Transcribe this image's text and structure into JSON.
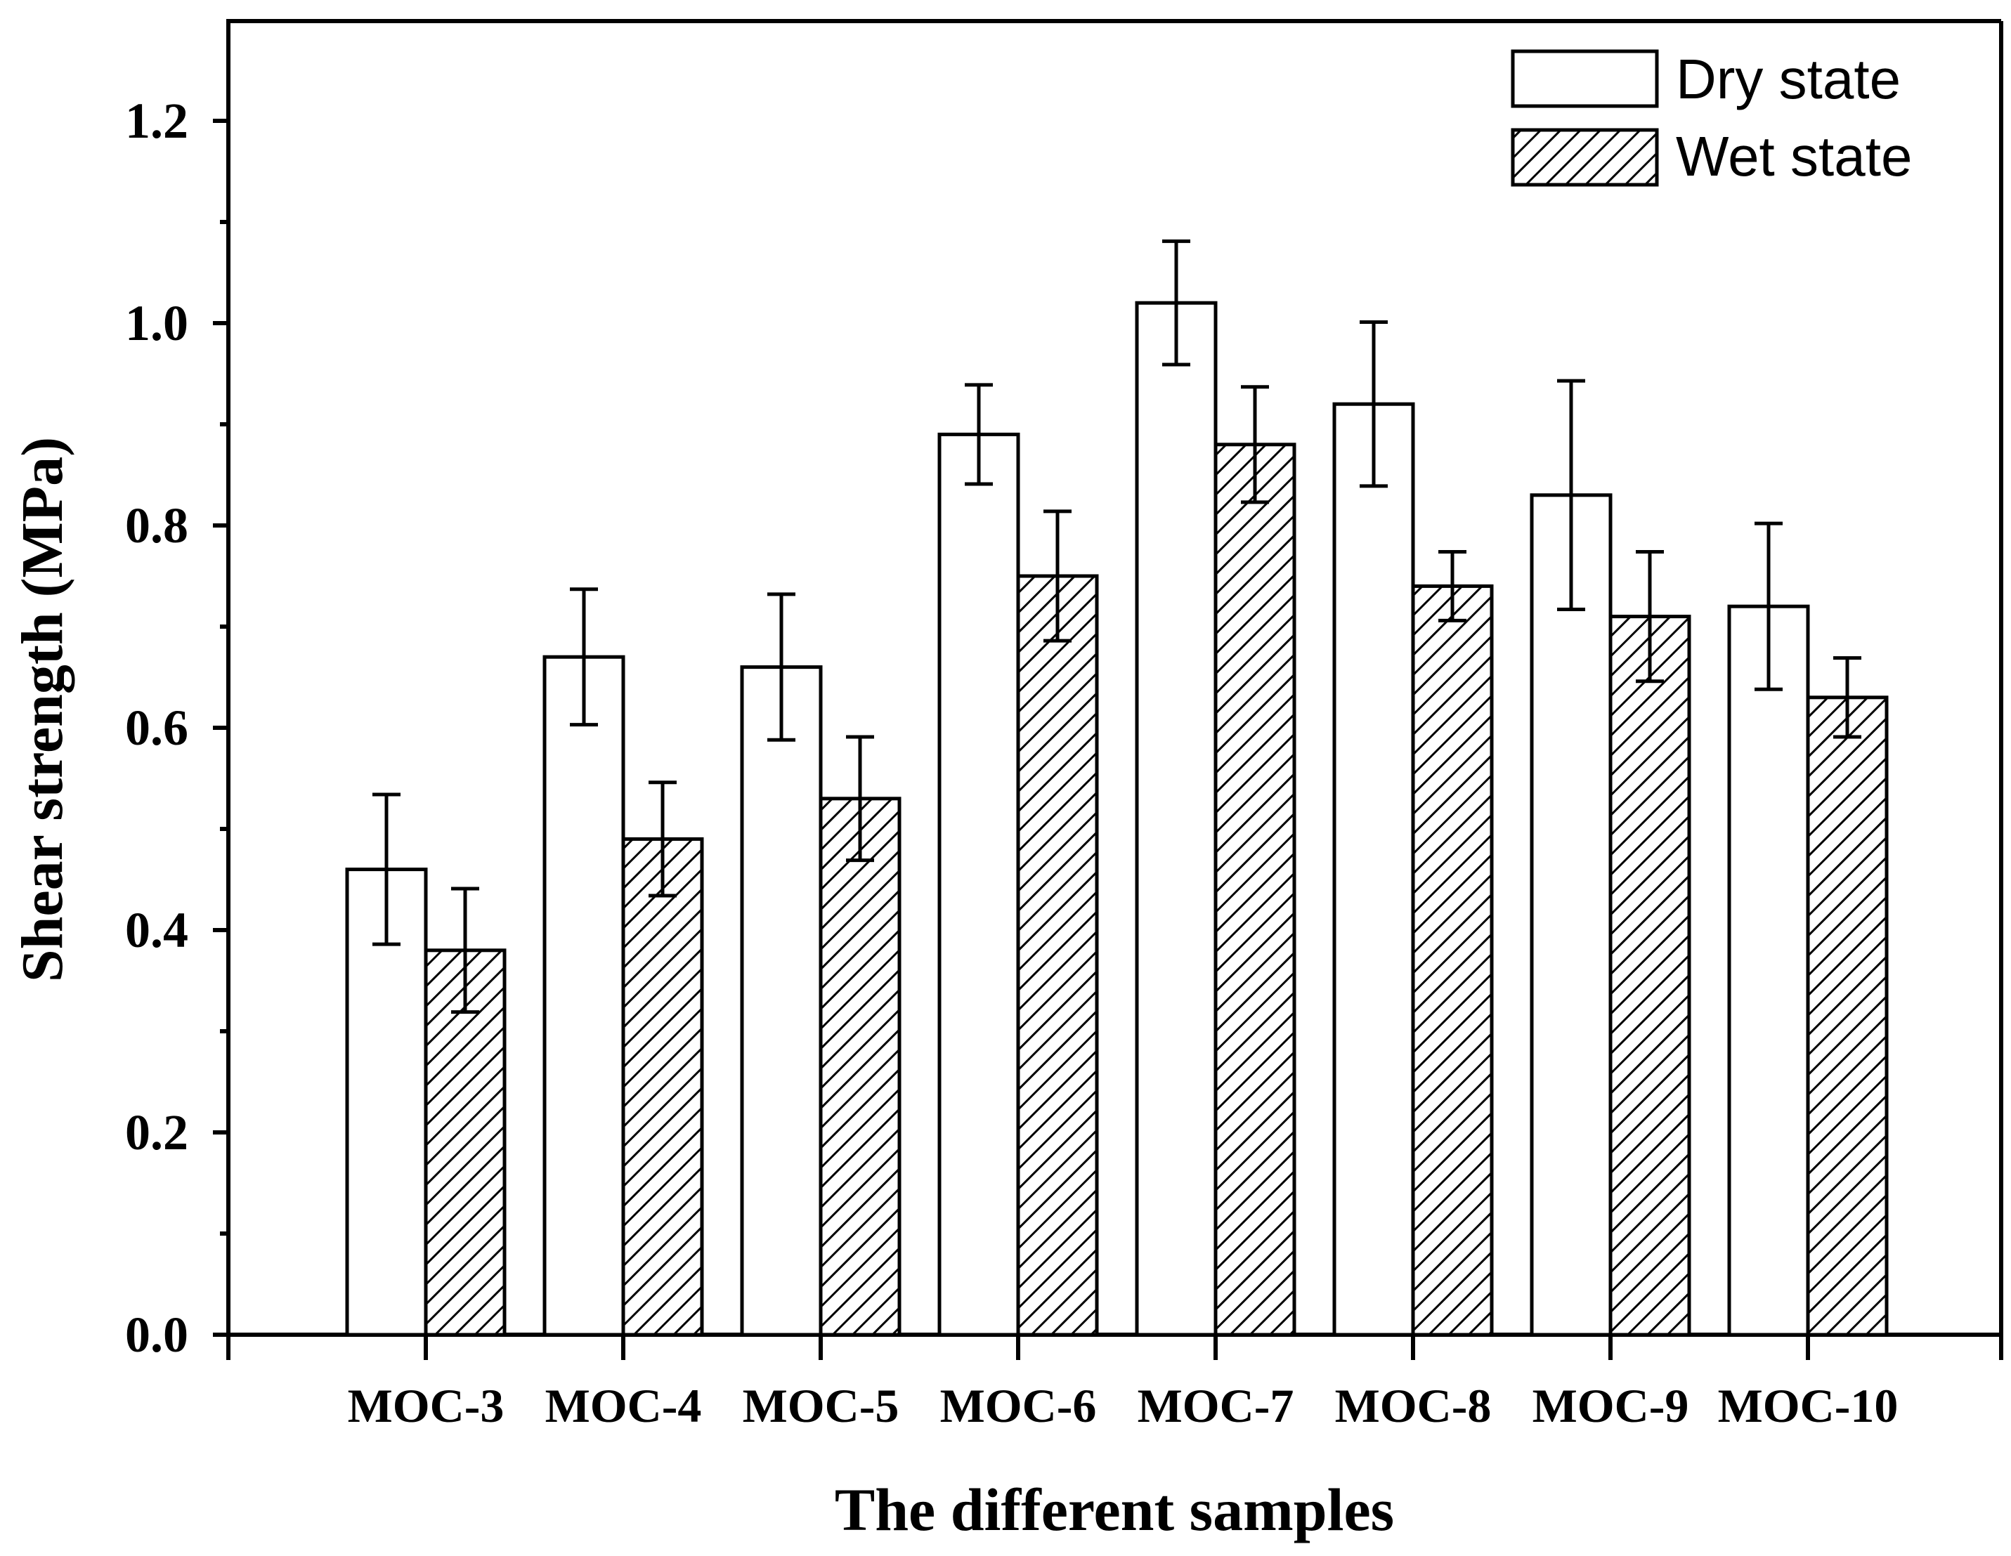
{
  "chart_data": {
    "type": "bar",
    "title": "",
    "xlabel": "The different samples",
    "ylabel": "Shear strength (MPa)",
    "ylim": [
      0.0,
      1.3
    ],
    "yticks": [
      "0.0",
      "0.2",
      "0.4",
      "0.6",
      "0.8",
      "1.0",
      "1.2"
    ],
    "ytick_values": [
      0.0,
      0.2,
      0.4,
      0.6,
      0.8,
      1.0,
      1.2
    ],
    "grid": false,
    "legend_position": "top-right",
    "categories": [
      "MOC-3",
      "MOC-4",
      "MOC-5",
      "MOC-6",
      "MOC-7",
      "MOC-8",
      "MOC-9",
      "MOC-10"
    ],
    "series": [
      {
        "name": "Dry state",
        "fill": "white",
        "values": [
          0.46,
          0.67,
          0.66,
          0.89,
          1.02,
          0.92,
          0.83,
          0.72
        ],
        "errors": [
          0.074,
          0.067,
          0.072,
          0.049,
          0.061,
          0.081,
          0.113,
          0.082
        ]
      },
      {
        "name": "Wet state",
        "fill": "hatched",
        "values": [
          0.38,
          0.49,
          0.53,
          0.75,
          0.88,
          0.74,
          0.71,
          0.63
        ],
        "errors": [
          0.061,
          0.056,
          0.061,
          0.064,
          0.057,
          0.034,
          0.064,
          0.039
        ]
      }
    ]
  },
  "colors": {
    "stroke": "#000000",
    "background": "#ffffff"
  }
}
